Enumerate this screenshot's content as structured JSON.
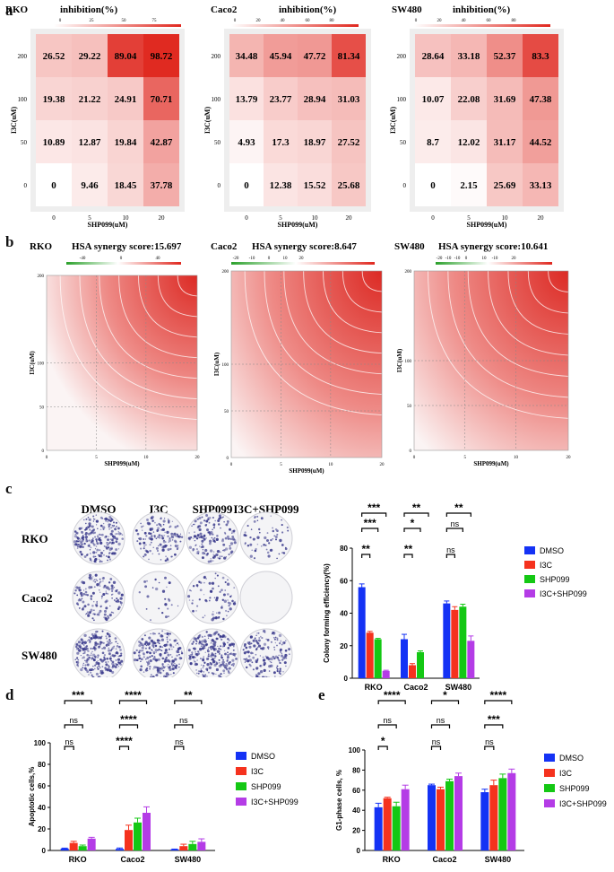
{
  "panels": {
    "a": "a",
    "b": "b",
    "c": "c",
    "d": "d",
    "e": "e"
  },
  "colors": {
    "dmso": "#1432f5",
    "i3c": "#f5321e",
    "shp099": "#14c814",
    "combo": "#b43ce6",
    "heat_low": "#ffffff",
    "heat_high": "#e0271e",
    "syn_pos": "#e0271e",
    "syn_neg": "#2aa02a"
  },
  "heatmap": {
    "cbar_title": "inhibition(%)",
    "xlabel": "SHP099(uM)",
    "ylabel": "I3C(uM)",
    "x_ticks": [
      "0",
      "5",
      "10",
      "20"
    ],
    "y_ticks": [
      "200",
      "100",
      "50",
      "0"
    ],
    "cells": [
      {
        "name": "RKO",
        "cbar_ticks": [
          "0",
          "25",
          "50",
          "75"
        ],
        "rows": [
          [
            "26.52",
            "29.22",
            "89.04",
            "98.72"
          ],
          [
            "19.38",
            "21.22",
            "24.91",
            "70.71"
          ],
          [
            "10.89",
            "12.87",
            "19.84",
            "42.87"
          ],
          [
            "0",
            "9.46",
            "18.45",
            "37.78"
          ]
        ]
      },
      {
        "name": "Caco2",
        "cbar_ticks": [
          "0",
          "20",
          "40",
          "60",
          "80"
        ],
        "rows": [
          [
            "34.48",
            "45.94",
            "47.72",
            "81.34"
          ],
          [
            "13.79",
            "23.77",
            "28.94",
            "31.03"
          ],
          [
            "4.93",
            "17.3",
            "18.97",
            "27.52"
          ],
          [
            "0",
            "12.38",
            "15.52",
            "25.68"
          ]
        ]
      },
      {
        "name": "SW480",
        "cbar_ticks": [
          "0",
          "20",
          "40",
          "60",
          "80"
        ],
        "rows": [
          [
            "28.64",
            "33.18",
            "52.37",
            "83.3"
          ],
          [
            "10.07",
            "22.08",
            "31.69",
            "47.38"
          ],
          [
            "8.7",
            "12.02",
            "31.17",
            "44.52"
          ],
          [
            "0",
            "2.15",
            "25.69",
            "33.13"
          ]
        ]
      }
    ]
  },
  "synergy": {
    "xlabel": "SHP099(uM)",
    "ylabel": "I3C(uM)",
    "x_ticks": [
      "0",
      "5",
      "10",
      "20"
    ],
    "y_ticks": [
      "200",
      "100",
      "50",
      "0"
    ],
    "cells": [
      {
        "name": "RKO",
        "score": "HSA synergy score:15.697",
        "cbar_ticks": [
          "-40",
          "0",
          "40"
        ]
      },
      {
        "name": "Caco2",
        "score": "HSA synergy score:8.647",
        "cbar_ticks": [
          "-20",
          "-10",
          "0",
          "10",
          "20"
        ]
      },
      {
        "name": "SW480",
        "score": "HSA synergy score:10.641",
        "cbar_ticks": [
          "-20",
          "-10",
          "-10",
          "0",
          "10",
          "-10",
          "20"
        ]
      }
    ]
  },
  "colony": {
    "col_labels": [
      "DMSO",
      "I3C",
      "SHP099",
      "I3C+SHP099"
    ],
    "row_labels": [
      "RKO",
      "Caco2",
      "SW480"
    ]
  },
  "chart_data": [
    {
      "type": "bar",
      "title": "Colony forming efficiency",
      "ylabel": "Colony forming efficiency(%)",
      "xlabel": "",
      "categories": [
        "RKO",
        "Caco2",
        "SW480"
      ],
      "ylim": [
        0,
        80
      ],
      "yticks": [
        "0",
        "20",
        "40",
        "60",
        "80"
      ],
      "series": [
        {
          "name": "DMSO",
          "values": [
            56,
            24,
            46
          ],
          "errors": [
            2,
            3,
            1.5
          ]
        },
        {
          "name": "I3C",
          "values": [
            28,
            8,
            42
          ],
          "errors": [
            0.8,
            1,
            2
          ]
        },
        {
          "name": "SHP099",
          "values": [
            24,
            16,
            44
          ],
          "errors": [
            0.5,
            0.8,
            1.5
          ]
        },
        {
          "name": "I3C+SHP099",
          "values": [
            4.5,
            0,
            23
          ],
          "errors": [
            0.4,
            0,
            3
          ]
        }
      ],
      "significance": [
        "***",
        "***",
        "**",
        "**",
        "*",
        "**",
        "**",
        "ns",
        "ns"
      ]
    },
    {
      "type": "bar",
      "title": "Apoptotic cells",
      "ylabel": "Apoptotic cells,%",
      "xlabel": "",
      "categories": [
        "RKO",
        "Caco2",
        "SW480"
      ],
      "ylim": [
        0,
        100
      ],
      "yticks": [
        "0",
        "20",
        "40",
        "60",
        "80",
        "100"
      ],
      "series": [
        {
          "name": "DMSO",
          "values": [
            1.8,
            1.5,
            1
          ],
          "errors": [
            0.4,
            0.8,
            0.3
          ]
        },
        {
          "name": "I3C",
          "values": [
            7,
            19,
            4
          ],
          "errors": [
            1.5,
            4.5,
            1.8
          ]
        },
        {
          "name": "SHP099",
          "values": [
            4,
            26,
            6
          ],
          "errors": [
            1,
            4,
            2.5
          ]
        },
        {
          "name": "I3C+SHP099",
          "values": [
            11,
            35,
            8
          ],
          "errors": [
            1.2,
            5.5,
            2.8
          ]
        }
      ],
      "significance": [
        "***",
        "ns",
        "ns",
        "****",
        "****",
        "****",
        "**",
        "ns",
        "ns"
      ]
    },
    {
      "type": "bar",
      "title": "G1-phase cells",
      "ylabel": "G1-phase cells, %",
      "xlabel": "",
      "categories": [
        "RKO",
        "Caco2",
        "SW480"
      ],
      "ylim": [
        0,
        100
      ],
      "yticks": [
        "0",
        "20",
        "40",
        "60",
        "80",
        "100"
      ],
      "series": [
        {
          "name": "DMSO",
          "values": [
            43,
            65,
            58
          ],
          "errors": [
            4,
            1,
            3
          ]
        },
        {
          "name": "I3C",
          "values": [
            52,
            61,
            65
          ],
          "errors": [
            1,
            2,
            5
          ]
        },
        {
          "name": "SHP099",
          "values": [
            44,
            69,
            72
          ],
          "errors": [
            4,
            2,
            4
          ]
        },
        {
          "name": "I3C+SHP099",
          "values": [
            61,
            74,
            77
          ],
          "errors": [
            4,
            3,
            4
          ]
        }
      ],
      "significance": [
        "****",
        "ns",
        "*",
        "*",
        "ns",
        "ns",
        "****",
        "***",
        "ns"
      ]
    }
  ]
}
